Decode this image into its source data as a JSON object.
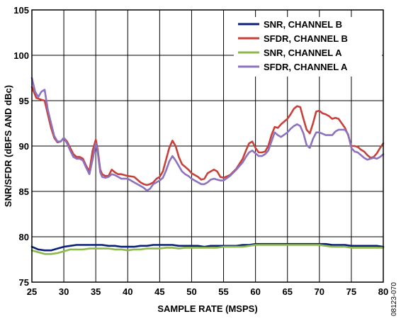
{
  "figure_id": "08123-070",
  "chart_data": {
    "type": "line",
    "xlabel": "SAMPLE RATE (MSPS)",
    "ylabel": "SNR/SFDR (dBFS AND dBc)",
    "xlim": [
      25,
      80
    ],
    "ylim": [
      75,
      105
    ],
    "x_ticks": [
      25,
      30,
      35,
      40,
      45,
      50,
      55,
      60,
      65,
      70,
      75,
      80
    ],
    "y_ticks": [
      75,
      80,
      85,
      90,
      95,
      100,
      105
    ],
    "grid": true,
    "legend_position": "top-right",
    "series": [
      {
        "name": "SNR, CHANNEL B",
        "color": "#0a1f7a",
        "points": [
          [
            25,
            78.9
          ],
          [
            26,
            78.6
          ],
          [
            27,
            78.5
          ],
          [
            28,
            78.5
          ],
          [
            29,
            78.7
          ],
          [
            30,
            78.9
          ],
          [
            31,
            79.0
          ],
          [
            32,
            79.1
          ],
          [
            33,
            79.1
          ],
          [
            34,
            79.1
          ],
          [
            35,
            79.1
          ],
          [
            36,
            79.1
          ],
          [
            37,
            79.0
          ],
          [
            38,
            79.0
          ],
          [
            39,
            78.9
          ],
          [
            40,
            78.9
          ],
          [
            41,
            78.9
          ],
          [
            42,
            79.0
          ],
          [
            43,
            79.0
          ],
          [
            44,
            79.1
          ],
          [
            45,
            79.1
          ],
          [
            46,
            79.1
          ],
          [
            47,
            79.1
          ],
          [
            48,
            79.0
          ],
          [
            49,
            79.0
          ],
          [
            50,
            79.0
          ],
          [
            51,
            79.0
          ],
          [
            52,
            78.9
          ],
          [
            53,
            79.0
          ],
          [
            54,
            79.0
          ],
          [
            55,
            79.0
          ],
          [
            56,
            79.0
          ],
          [
            57,
            79.0
          ],
          [
            58,
            79.1
          ],
          [
            59,
            79.1
          ],
          [
            60,
            79.2
          ],
          [
            61,
            79.2
          ],
          [
            62,
            79.2
          ],
          [
            63,
            79.2
          ],
          [
            64,
            79.2
          ],
          [
            65,
            79.2
          ],
          [
            66,
            79.2
          ],
          [
            67,
            79.2
          ],
          [
            68,
            79.2
          ],
          [
            69,
            79.2
          ],
          [
            70,
            79.2
          ],
          [
            71,
            79.2
          ],
          [
            72,
            79.1
          ],
          [
            73,
            79.1
          ],
          [
            74,
            79.1
          ],
          [
            75,
            79.0
          ],
          [
            76,
            79.0
          ],
          [
            77,
            79.0
          ],
          [
            78,
            79.0
          ],
          [
            79,
            79.0
          ],
          [
            80,
            78.9
          ]
        ]
      },
      {
        "name": "SFDR, CHANNEL B",
        "color": "#c8403a",
        "points": [
          [
            25,
            96.5
          ],
          [
            25.7,
            95.3
          ],
          [
            26.5,
            95.1
          ],
          [
            27,
            95.0
          ],
          [
            27.5,
            93.5
          ],
          [
            28,
            92.0
          ],
          [
            28.5,
            90.9
          ],
          [
            29,
            90.4
          ],
          [
            29.5,
            90.5
          ],
          [
            30,
            90.9
          ],
          [
            30.5,
            90.5
          ],
          [
            31,
            89.8
          ],
          [
            31.5,
            89.1
          ],
          [
            32,
            88.8
          ],
          [
            32.5,
            88.8
          ],
          [
            33,
            88.6
          ],
          [
            33.5,
            87.8
          ],
          [
            34,
            87.2
          ],
          [
            34.5,
            89.5
          ],
          [
            35,
            90.7
          ],
          [
            35.3,
            89.6
          ],
          [
            35.7,
            87.4
          ],
          [
            36,
            86.9
          ],
          [
            36.5,
            86.7
          ],
          [
            37,
            86.7
          ],
          [
            37.5,
            87.4
          ],
          [
            38,
            87.1
          ],
          [
            38.5,
            86.9
          ],
          [
            39,
            86.9
          ],
          [
            40,
            86.7
          ],
          [
            41,
            86.6
          ],
          [
            41.5,
            86.3
          ],
          [
            42,
            86.0
          ],
          [
            42.5,
            85.8
          ],
          [
            43,
            85.7
          ],
          [
            43.5,
            85.8
          ],
          [
            44,
            86.0
          ],
          [
            44.5,
            86.4
          ],
          [
            45,
            86.6
          ],
          [
            45.5,
            87.2
          ],
          [
            46,
            88.5
          ],
          [
            46.5,
            89.8
          ],
          [
            47,
            90.6
          ],
          [
            47.5,
            90.0
          ],
          [
            48,
            88.8
          ],
          [
            48.5,
            88.0
          ],
          [
            49,
            87.7
          ],
          [
            49.5,
            87.4
          ],
          [
            50,
            87.0
          ],
          [
            51,
            86.6
          ],
          [
            51.5,
            86.3
          ],
          [
            52,
            86.4
          ],
          [
            52.5,
            87.0
          ],
          [
            53,
            87.2
          ],
          [
            53.5,
            87.4
          ],
          [
            54,
            87.2
          ],
          [
            54.5,
            86.6
          ],
          [
            55,
            86.5
          ],
          [
            56,
            86.8
          ],
          [
            57,
            87.5
          ],
          [
            58,
            88.6
          ],
          [
            58.5,
            89.5
          ],
          [
            59,
            90.3
          ],
          [
            59.5,
            90.5
          ],
          [
            60,
            89.8
          ],
          [
            60.5,
            89.3
          ],
          [
            61,
            89.3
          ],
          [
            61.5,
            89.4
          ],
          [
            62,
            90.0
          ],
          [
            62.5,
            91.2
          ],
          [
            63,
            92.1
          ],
          [
            63.5,
            92.0
          ],
          [
            64,
            92.4
          ],
          [
            65,
            93.0
          ],
          [
            65.5,
            93.5
          ],
          [
            66,
            94.1
          ],
          [
            66.5,
            94.4
          ],
          [
            67,
            94.3
          ],
          [
            67.5,
            93.0
          ],
          [
            68,
            91.8
          ],
          [
            68.5,
            91.4
          ],
          [
            69,
            92.5
          ],
          [
            69.5,
            93.8
          ],
          [
            70,
            93.9
          ],
          [
            70.5,
            93.6
          ],
          [
            71,
            93.5
          ],
          [
            71.5,
            93.3
          ],
          [
            72,
            93.0
          ],
          [
            72.5,
            93.1
          ],
          [
            73,
            93.0
          ],
          [
            73.5,
            92.5
          ],
          [
            74,
            92.0
          ],
          [
            74.5,
            91.2
          ],
          [
            75,
            90.0
          ],
          [
            75.5,
            90.0
          ],
          [
            76,
            89.9
          ],
          [
            76.5,
            89.6
          ],
          [
            77,
            89.4
          ],
          [
            77.5,
            89.0
          ],
          [
            78,
            88.7
          ],
          [
            78.5,
            88.8
          ],
          [
            79,
            89.2
          ],
          [
            79.5,
            89.8
          ],
          [
            80,
            90.3
          ]
        ]
      },
      {
        "name": "SNR, CHANNEL A",
        "color": "#8db84a",
        "points": [
          [
            25,
            78.5
          ],
          [
            26,
            78.3
          ],
          [
            27,
            78.1
          ],
          [
            28,
            78.1
          ],
          [
            29,
            78.2
          ],
          [
            30,
            78.4
          ],
          [
            31,
            78.6
          ],
          [
            32,
            78.6
          ],
          [
            33,
            78.6
          ],
          [
            34,
            78.7
          ],
          [
            35,
            78.7
          ],
          [
            36,
            78.7
          ],
          [
            37,
            78.7
          ],
          [
            38,
            78.6
          ],
          [
            39,
            78.6
          ],
          [
            40,
            78.5
          ],
          [
            41,
            78.6
          ],
          [
            42,
            78.6
          ],
          [
            43,
            78.7
          ],
          [
            44,
            78.7
          ],
          [
            45,
            78.7
          ],
          [
            46,
            78.8
          ],
          [
            47,
            78.8
          ],
          [
            48,
            78.7
          ],
          [
            49,
            78.8
          ],
          [
            50,
            78.8
          ],
          [
            51,
            78.8
          ],
          [
            52,
            78.8
          ],
          [
            53,
            78.8
          ],
          [
            54,
            78.8
          ],
          [
            55,
            78.9
          ],
          [
            56,
            78.9
          ],
          [
            57,
            78.9
          ],
          [
            58,
            78.9
          ],
          [
            59,
            79.0
          ],
          [
            60,
            79.1
          ],
          [
            61,
            79.1
          ],
          [
            62,
            79.1
          ],
          [
            63,
            79.1
          ],
          [
            64,
            79.1
          ],
          [
            65,
            79.1
          ],
          [
            66,
            79.1
          ],
          [
            67,
            79.1
          ],
          [
            68,
            79.1
          ],
          [
            69,
            79.1
          ],
          [
            70,
            79.1
          ],
          [
            71,
            79.0
          ],
          [
            72,
            78.9
          ],
          [
            73,
            78.9
          ],
          [
            74,
            78.9
          ],
          [
            75,
            78.8
          ],
          [
            76,
            78.8
          ],
          [
            77,
            78.8
          ],
          [
            78,
            78.8
          ],
          [
            79,
            78.8
          ],
          [
            80,
            78.8
          ]
        ]
      },
      {
        "name": "SFDR, CHANNEL A",
        "color": "#8c72bf",
        "points": [
          [
            25,
            97.5
          ],
          [
            25.5,
            96.0
          ],
          [
            26,
            95.4
          ],
          [
            26.5,
            96.0
          ],
          [
            27,
            96.2
          ],
          [
            27.5,
            94.0
          ],
          [
            28,
            92.5
          ],
          [
            28.5,
            91.1
          ],
          [
            29,
            90.5
          ],
          [
            29.5,
            90.5
          ],
          [
            30,
            90.9
          ],
          [
            30.5,
            90.3
          ],
          [
            31,
            89.5
          ],
          [
            31.5,
            88.8
          ],
          [
            32,
            88.6
          ],
          [
            32.5,
            88.6
          ],
          [
            33,
            88.4
          ],
          [
            33.5,
            87.6
          ],
          [
            34,
            86.9
          ],
          [
            34.5,
            88.5
          ],
          [
            35,
            90.3
          ],
          [
            35.3,
            89.3
          ],
          [
            35.7,
            87.1
          ],
          [
            36,
            86.6
          ],
          [
            36.5,
            86.5
          ],
          [
            37,
            86.6
          ],
          [
            37.5,
            86.9
          ],
          [
            38,
            86.8
          ],
          [
            38.5,
            86.6
          ],
          [
            39,
            86.4
          ],
          [
            40,
            86.4
          ],
          [
            41,
            86.0
          ],
          [
            41.5,
            85.8
          ],
          [
            42,
            85.6
          ],
          [
            42.5,
            85.4
          ],
          [
            43,
            85.1
          ],
          [
            43.5,
            85.3
          ],
          [
            44,
            85.8
          ],
          [
            44.5,
            86.0
          ],
          [
            45,
            86.2
          ],
          [
            45.5,
            86.5
          ],
          [
            46,
            87.3
          ],
          [
            46.5,
            88.3
          ],
          [
            47,
            88.9
          ],
          [
            47.5,
            88.4
          ],
          [
            48,
            87.8
          ],
          [
            48.5,
            87.2
          ],
          [
            49,
            86.9
          ],
          [
            49.5,
            86.7
          ],
          [
            50,
            86.4
          ],
          [
            51,
            86.0
          ],
          [
            51.5,
            85.8
          ],
          [
            52,
            85.8
          ],
          [
            52.5,
            86.0
          ],
          [
            53,
            86.3
          ],
          [
            53.5,
            86.4
          ],
          [
            54,
            86.3
          ],
          [
            54.5,
            86.2
          ],
          [
            55,
            86.2
          ],
          [
            56,
            86.7
          ],
          [
            57,
            87.4
          ],
          [
            58,
            88.2
          ],
          [
            58.5,
            88.8
          ],
          [
            59,
            89.3
          ],
          [
            59.5,
            89.5
          ],
          [
            60,
            89.2
          ],
          [
            60.5,
            88.9
          ],
          [
            61,
            88.9
          ],
          [
            61.5,
            89.1
          ],
          [
            62,
            89.5
          ],
          [
            62.5,
            90.5
          ],
          [
            63,
            91.5
          ],
          [
            63.5,
            91.2
          ],
          [
            64,
            91.0
          ],
          [
            65,
            91.5
          ],
          [
            65.5,
            91.9
          ],
          [
            66,
            92.2
          ],
          [
            66.5,
            92.4
          ],
          [
            67,
            92.2
          ],
          [
            67.5,
            91.4
          ],
          [
            68,
            90.1
          ],
          [
            68.5,
            89.8
          ],
          [
            69,
            90.8
          ],
          [
            69.5,
            91.5
          ],
          [
            70,
            91.5
          ],
          [
            71,
            91.2
          ],
          [
            72,
            91.2
          ],
          [
            72.5,
            91.6
          ],
          [
            73,
            91.8
          ],
          [
            74,
            91.8
          ],
          [
            74.5,
            91.3
          ],
          [
            75,
            89.8
          ],
          [
            75.5,
            89.4
          ],
          [
            76,
            89.3
          ],
          [
            76.5,
            89.0
          ],
          [
            77,
            88.7
          ],
          [
            77.5,
            88.5
          ],
          [
            78,
            88.6
          ],
          [
            78.5,
            88.7
          ],
          [
            79,
            88.6
          ],
          [
            79.5,
            88.8
          ],
          [
            80,
            89.1
          ]
        ]
      }
    ]
  }
}
